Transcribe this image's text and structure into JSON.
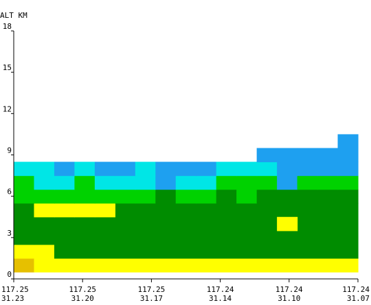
{
  "chart_data": {
    "type": "heatmap",
    "title": "",
    "ylabel": "ALT KM",
    "xlabel": "",
    "ylim": [
      0,
      18
    ],
    "y_ticks": [
      0,
      3,
      6,
      9,
      12,
      15,
      18
    ],
    "x_ticks": [
      {
        "lon": "117.25",
        "lat": "31.23"
      },
      {
        "lon": "117.25",
        "lat": "31.20"
      },
      {
        "lon": "117.25",
        "lat": "31.17"
      },
      {
        "lon": "117.24",
        "lat": "31.14"
      },
      {
        "lon": "117.24",
        "lat": "31.10"
      },
      {
        "lon": "117.24",
        "lat": "31.07"
      }
    ],
    "columns": 17,
    "grid": false,
    "colors": {
      "A": "#e6c000",
      "Y": "#ffff00",
      "D": "#008c00",
      "G": "#00d200",
      "C": "#00e6e6",
      "B": "#1ea0f0",
      "axis": "#000000",
      "background": "#ffffff"
    },
    "cells": [
      {
        "col": 0,
        "z0": 0.5,
        "z1": 1.5,
        "c": "A"
      },
      {
        "col": 1,
        "z0": 0.5,
        "z1": 1.5,
        "c": "Y"
      },
      {
        "col": 2,
        "z0": 0.5,
        "z1": 1.5,
        "c": "Y"
      },
      {
        "col": 3,
        "z0": 0.5,
        "z1": 1.5,
        "c": "Y"
      },
      {
        "col": 4,
        "z0": 0.5,
        "z1": 1.5,
        "c": "Y"
      },
      {
        "col": 5,
        "z0": 0.5,
        "z1": 1.5,
        "c": "Y"
      },
      {
        "col": 6,
        "z0": 0.5,
        "z1": 1.5,
        "c": "Y"
      },
      {
        "col": 7,
        "z0": 0.5,
        "z1": 1.5,
        "c": "Y"
      },
      {
        "col": 8,
        "z0": 0.5,
        "z1": 1.5,
        "c": "Y"
      },
      {
        "col": 9,
        "z0": 0.5,
        "z1": 1.5,
        "c": "Y"
      },
      {
        "col": 10,
        "z0": 0.5,
        "z1": 1.5,
        "c": "Y"
      },
      {
        "col": 11,
        "z0": 0.5,
        "z1": 1.5,
        "c": "Y"
      },
      {
        "col": 12,
        "z0": 0.5,
        "z1": 1.5,
        "c": "Y"
      },
      {
        "col": 13,
        "z0": 0.5,
        "z1": 1.5,
        "c": "Y"
      },
      {
        "col": 14,
        "z0": 0.5,
        "z1": 1.5,
        "c": "Y"
      },
      {
        "col": 15,
        "z0": 0.5,
        "z1": 1.5,
        "c": "Y"
      },
      {
        "col": 16,
        "z0": 0.5,
        "z1": 1.5,
        "c": "Y"
      },
      {
        "col": 0,
        "z0": 1.5,
        "z1": 2.5,
        "c": "Y"
      },
      {
        "col": 1,
        "z0": 1.5,
        "z1": 2.5,
        "c": "Y"
      },
      {
        "col": 2,
        "z0": 1.5,
        "z1": 5.0,
        "c": "D"
      },
      {
        "col": 3,
        "z0": 1.5,
        "z1": 5.0,
        "c": "D"
      },
      {
        "col": 4,
        "z0": 1.5,
        "z1": 5.0,
        "c": "D"
      },
      {
        "col": 5,
        "z0": 1.5,
        "z1": 5.5,
        "c": "D"
      },
      {
        "col": 6,
        "z0": 1.5,
        "z1": 5.5,
        "c": "D"
      },
      {
        "col": 7,
        "z0": 1.5,
        "z1": 5.5,
        "c": "D"
      },
      {
        "col": 8,
        "z0": 1.5,
        "z1": 5.5,
        "c": "D"
      },
      {
        "col": 9,
        "z0": 1.5,
        "z1": 5.5,
        "c": "D"
      },
      {
        "col": 10,
        "z0": 1.5,
        "z1": 5.5,
        "c": "D"
      },
      {
        "col": 11,
        "z0": 1.5,
        "z1": 5.5,
        "c": "D"
      },
      {
        "col": 12,
        "z0": 1.5,
        "z1": 5.5,
        "c": "D"
      },
      {
        "col": 13,
        "z0": 1.5,
        "z1": 5.5,
        "c": "D"
      },
      {
        "col": 14,
        "z0": 1.5,
        "z1": 5.5,
        "c": "D"
      },
      {
        "col": 15,
        "z0": 1.5,
        "z1": 5.5,
        "c": "D"
      },
      {
        "col": 16,
        "z0": 1.5,
        "z1": 5.5,
        "c": "D"
      },
      {
        "col": 0,
        "z0": 2.5,
        "z1": 5.5,
        "c": "D"
      },
      {
        "col": 1,
        "z0": 2.5,
        "z1": 4.5,
        "c": "D"
      },
      {
        "col": 1,
        "z0": 4.5,
        "z1": 5.5,
        "c": "Y"
      },
      {
        "col": 2,
        "z0": 4.5,
        "z1": 5.5,
        "c": "Y"
      },
      {
        "col": 3,
        "z0": 4.5,
        "z1": 5.5,
        "c": "Y"
      },
      {
        "col": 4,
        "z0": 4.5,
        "z1": 5.5,
        "c": "Y"
      },
      {
        "col": 13,
        "z0": 3.5,
        "z1": 4.5,
        "c": "Y"
      },
      {
        "col": 0,
        "z0": 5.5,
        "z1": 6.5,
        "c": "G"
      },
      {
        "col": 1,
        "z0": 5.5,
        "z1": 6.5,
        "c": "G"
      },
      {
        "col": 2,
        "z0": 5.5,
        "z1": 6.5,
        "c": "G"
      },
      {
        "col": 3,
        "z0": 5.5,
        "z1": 6.5,
        "c": "G"
      },
      {
        "col": 4,
        "z0": 5.5,
        "z1": 6.5,
        "c": "G"
      },
      {
        "col": 5,
        "z0": 5.5,
        "z1": 6.5,
        "c": "G"
      },
      {
        "col": 6,
        "z0": 5.5,
        "z1": 6.5,
        "c": "G"
      },
      {
        "col": 7,
        "z0": 5.5,
        "z1": 6.5,
        "c": "D"
      },
      {
        "col": 8,
        "z0": 5.5,
        "z1": 6.5,
        "c": "G"
      },
      {
        "col": 9,
        "z0": 5.5,
        "z1": 6.5,
        "c": "G"
      },
      {
        "col": 10,
        "z0": 5.5,
        "z1": 6.5,
        "c": "D"
      },
      {
        "col": 11,
        "z0": 5.5,
        "z1": 6.5,
        "c": "G"
      },
      {
        "col": 12,
        "z0": 5.5,
        "z1": 6.5,
        "c": "D"
      },
      {
        "col": 13,
        "z0": 5.5,
        "z1": 6.5,
        "c": "D"
      },
      {
        "col": 14,
        "z0": 5.5,
        "z1": 6.5,
        "c": "D"
      },
      {
        "col": 15,
        "z0": 5.5,
        "z1": 6.5,
        "c": "D"
      },
      {
        "col": 16,
        "z0": 5.5,
        "z1": 6.5,
        "c": "D"
      },
      {
        "col": 0,
        "z0": 6.5,
        "z1": 7.5,
        "c": "G"
      },
      {
        "col": 1,
        "z0": 6.5,
        "z1": 7.5,
        "c": "C"
      },
      {
        "col": 2,
        "z0": 6.5,
        "z1": 7.5,
        "c": "C"
      },
      {
        "col": 3,
        "z0": 6.5,
        "z1": 7.5,
        "c": "G"
      },
      {
        "col": 4,
        "z0": 6.5,
        "z1": 7.5,
        "c": "C"
      },
      {
        "col": 5,
        "z0": 6.5,
        "z1": 7.5,
        "c": "C"
      },
      {
        "col": 6,
        "z0": 6.5,
        "z1": 7.5,
        "c": "C"
      },
      {
        "col": 7,
        "z0": 6.5,
        "z1": 7.5,
        "c": "B"
      },
      {
        "col": 8,
        "z0": 6.5,
        "z1": 7.5,
        "c": "C"
      },
      {
        "col": 9,
        "z0": 6.5,
        "z1": 7.5,
        "c": "C"
      },
      {
        "col": 10,
        "z0": 6.5,
        "z1": 7.5,
        "c": "G"
      },
      {
        "col": 11,
        "z0": 6.5,
        "z1": 7.5,
        "c": "G"
      },
      {
        "col": 12,
        "z0": 6.5,
        "z1": 7.5,
        "c": "G"
      },
      {
        "col": 13,
        "z0": 6.5,
        "z1": 7.5,
        "c": "B"
      },
      {
        "col": 14,
        "z0": 6.5,
        "z1": 7.5,
        "c": "G"
      },
      {
        "col": 15,
        "z0": 6.5,
        "z1": 7.5,
        "c": "G"
      },
      {
        "col": 16,
        "z0": 6.5,
        "z1": 7.5,
        "c": "G"
      },
      {
        "col": 0,
        "z0": 7.5,
        "z1": 8.5,
        "c": "C"
      },
      {
        "col": 1,
        "z0": 7.5,
        "z1": 8.5,
        "c": "C"
      },
      {
        "col": 2,
        "z0": 7.5,
        "z1": 8.5,
        "c": "B"
      },
      {
        "col": 3,
        "z0": 7.5,
        "z1": 8.5,
        "c": "C"
      },
      {
        "col": 4,
        "z0": 7.5,
        "z1": 8.5,
        "c": "B"
      },
      {
        "col": 5,
        "z0": 7.5,
        "z1": 8.5,
        "c": "B"
      },
      {
        "col": 6,
        "z0": 7.5,
        "z1": 8.5,
        "c": "C"
      },
      {
        "col": 7,
        "z0": 7.5,
        "z1": 8.5,
        "c": "B"
      },
      {
        "col": 8,
        "z0": 7.5,
        "z1": 8.5,
        "c": "B"
      },
      {
        "col": 9,
        "z0": 7.5,
        "z1": 8.5,
        "c": "B"
      },
      {
        "col": 10,
        "z0": 7.5,
        "z1": 8.5,
        "c": "C"
      },
      {
        "col": 11,
        "z0": 7.5,
        "z1": 8.5,
        "c": "C"
      },
      {
        "col": 12,
        "z0": 7.5,
        "z1": 8.5,
        "c": "C"
      },
      {
        "col": 13,
        "z0": 7.5,
        "z1": 8.5,
        "c": "B"
      },
      {
        "col": 14,
        "z0": 7.5,
        "z1": 8.5,
        "c": "B"
      },
      {
        "col": 15,
        "z0": 7.5,
        "z1": 8.5,
        "c": "B"
      },
      {
        "col": 16,
        "z0": 7.5,
        "z1": 8.5,
        "c": "B"
      },
      {
        "col": 12,
        "z0": 8.5,
        "z1": 9.5,
        "c": "B"
      },
      {
        "col": 13,
        "z0": 8.5,
        "z1": 9.5,
        "c": "B"
      },
      {
        "col": 14,
        "z0": 8.5,
        "z1": 9.5,
        "c": "B"
      },
      {
        "col": 15,
        "z0": 8.5,
        "z1": 9.5,
        "c": "B"
      },
      {
        "col": 16,
        "z0": 8.5,
        "z1": 10.5,
        "c": "B"
      }
    ]
  }
}
